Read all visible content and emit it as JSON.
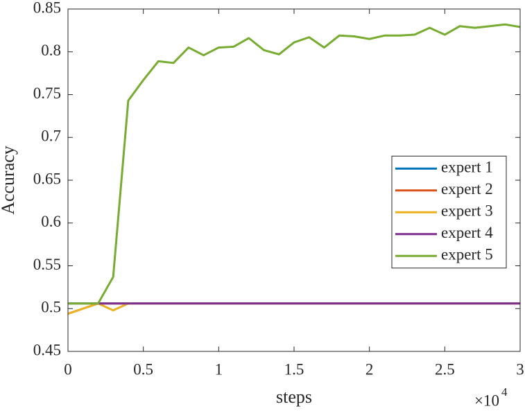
{
  "chart_data": {
    "type": "line",
    "x_label": "steps",
    "y_label": "Accuracy",
    "x_multiplier": "×10",
    "x_multiplier_exponent": "4",
    "x": [
      0,
      1000,
      2000,
      3000,
      4000,
      5000,
      6000,
      7000,
      8000,
      9000,
      10000,
      11000,
      12000,
      13000,
      14000,
      15000,
      16000,
      17000,
      18000,
      19000,
      20000,
      21000,
      22000,
      23000,
      24000,
      25000,
      26000,
      27000,
      28000,
      29000,
      30000
    ],
    "series": [
      {
        "name": "expert 1",
        "color": "#0072bd",
        "values": [
          0.506,
          0.506,
          0.506,
          0.506,
          0.506,
          0.506,
          0.506,
          0.506,
          0.506,
          0.506,
          0.506,
          0.506,
          0.506,
          0.506,
          0.506,
          0.506,
          0.506,
          0.506,
          0.506,
          0.506,
          0.506,
          0.506,
          0.506,
          0.506,
          0.506,
          0.506,
          0.506,
          0.506,
          0.506,
          0.506,
          0.506
        ]
      },
      {
        "name": "expert 2",
        "color": "#d95319",
        "values": [
          0.494,
          0.5,
          0.506,
          0.506,
          0.506,
          0.506,
          0.506,
          0.506,
          0.506,
          0.506,
          0.506,
          0.506,
          0.506,
          0.506,
          0.506,
          0.506,
          0.506,
          0.506,
          0.506,
          0.506,
          0.506,
          0.506,
          0.506,
          0.506,
          0.506,
          0.506,
          0.506,
          0.506,
          0.506,
          0.506,
          0.506
        ]
      },
      {
        "name": "expert 3",
        "color": "#edb120",
        "values": [
          0.494,
          0.5,
          0.506,
          0.498,
          0.506,
          0.506,
          0.506,
          0.506,
          0.506,
          0.506,
          0.506,
          0.506,
          0.506,
          0.506,
          0.506,
          0.506,
          0.506,
          0.506,
          0.506,
          0.506,
          0.506,
          0.506,
          0.506,
          0.506,
          0.506,
          0.506,
          0.506,
          0.506,
          0.506,
          0.506,
          0.506
        ]
      },
      {
        "name": "expert 4",
        "color": "#7e2f8e",
        "values": [
          0.506,
          0.506,
          0.506,
          0.506,
          0.506,
          0.506,
          0.506,
          0.506,
          0.506,
          0.506,
          0.506,
          0.506,
          0.506,
          0.506,
          0.506,
          0.506,
          0.506,
          0.506,
          0.506,
          0.506,
          0.506,
          0.506,
          0.506,
          0.506,
          0.506,
          0.506,
          0.506,
          0.506,
          0.506,
          0.506,
          0.506
        ]
      },
      {
        "name": "expert 5",
        "color": "#77ac30",
        "values": [
          0.506,
          0.506,
          0.506,
          0.537,
          0.743,
          0.767,
          0.789,
          0.787,
          0.805,
          0.796,
          0.805,
          0.806,
          0.816,
          0.802,
          0.797,
          0.811,
          0.817,
          0.805,
          0.819,
          0.818,
          0.815,
          0.819,
          0.819,
          0.82,
          0.828,
          0.82,
          0.83,
          0.828,
          0.83,
          0.832,
          0.829
        ]
      }
    ],
    "xlim": [
      0,
      30000
    ],
    "xticks": [
      0,
      {
        "value": 5000,
        "label": "0.5"
      },
      {
        "value": 10000,
        "label": "1"
      },
      {
        "value": 15000,
        "label": "1.5"
      },
      {
        "value": 20000,
        "label": "2"
      },
      {
        "value": 25000,
        "label": "2.5"
      },
      {
        "value": 30000,
        "label": "3"
      }
    ],
    "ylim": [
      0.45,
      0.85
    ],
    "yticks": [
      0.45,
      0.5,
      0.55,
      0.6,
      0.65,
      0.7,
      0.75,
      0.8,
      0.85
    ],
    "grid": false,
    "legend": "east"
  }
}
